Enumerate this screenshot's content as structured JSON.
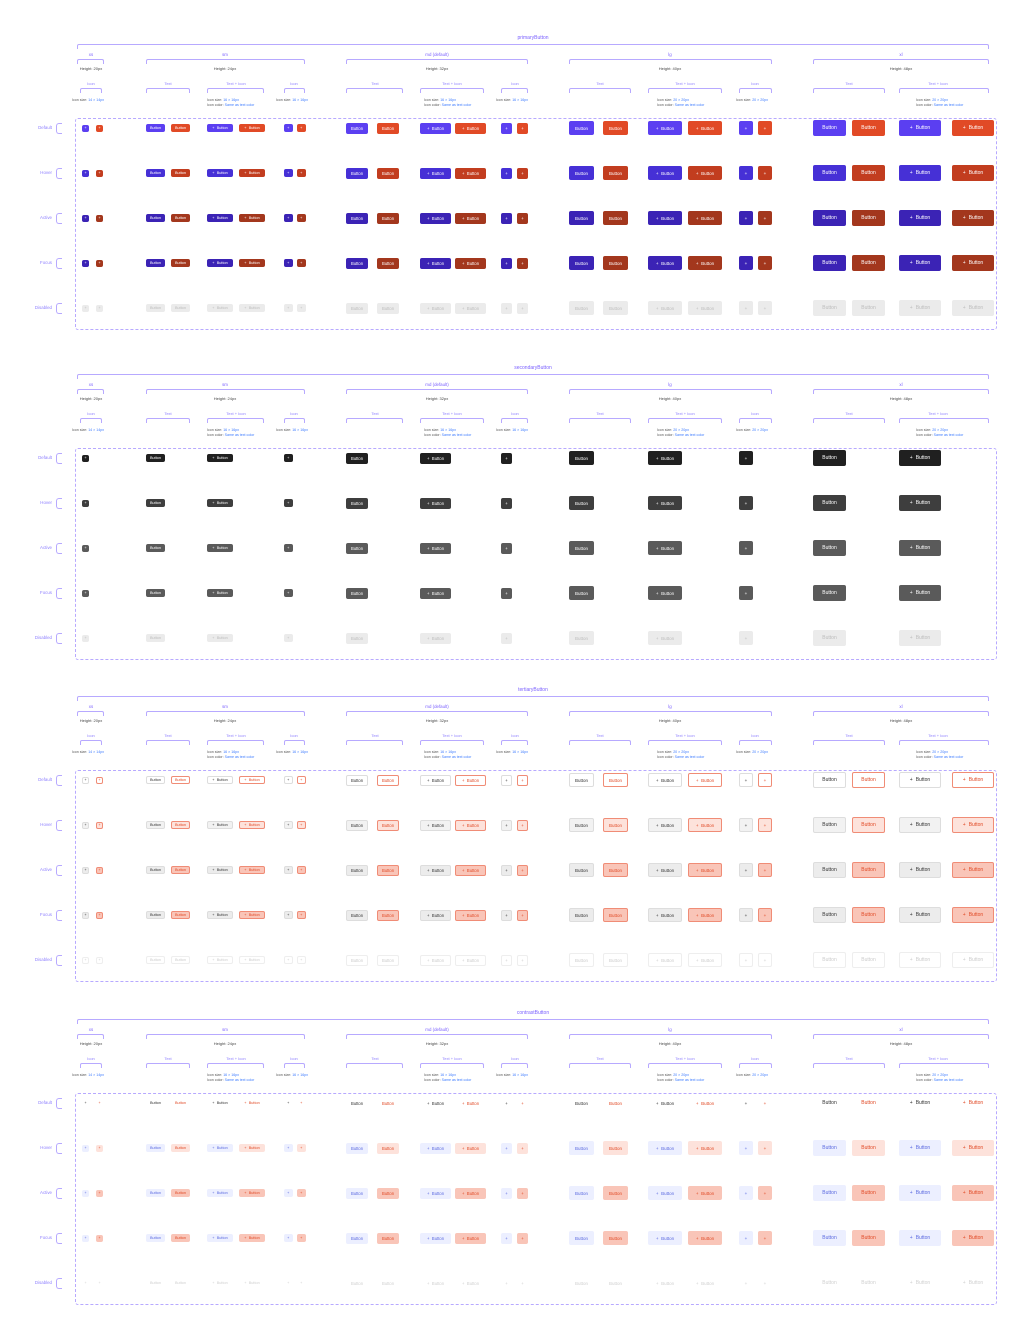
{
  "labels": {
    "text": "Text",
    "text_icon": "Text + Icon",
    "icon": "Icon",
    "button": "Button",
    "plus_glyph": "+",
    "icon_size_prefix": "Icon size:",
    "icon_color_prefix": "Icon color:",
    "same_as_text": "Same as text color",
    "icon_14": "14 × 14px",
    "icon_16": "16 × 16px",
    "icon_20": "20 × 20px"
  },
  "sizes": [
    {
      "key": "xs",
      "name": "xs",
      "height_label": "Height: 20px"
    },
    {
      "key": "sm",
      "name": "sm",
      "height_label": "Height: 24px"
    },
    {
      "key": "md",
      "name": "md (default)",
      "height_label": "Height: 32px"
    },
    {
      "key": "lg",
      "name": "lg",
      "height_label": "Height: 40px"
    },
    {
      "key": "xl",
      "name": "xl",
      "height_label": "Height: 48px"
    }
  ],
  "states": [
    "Default",
    "Hover",
    "Active",
    "Focus",
    "Disabled"
  ],
  "sections": [
    {
      "key": "primary",
      "title": "primaryButton",
      "variants": {
        "a": {
          "name": "violet",
          "states": [
            {
              "bg": "#5b3ff1",
              "fg": "#ffffff",
              "border": "#5b3ff1"
            },
            {
              "bg": "#4630d6",
              "fg": "#ffffff",
              "border": "#4630d6"
            },
            {
              "bg": "#3b23b5",
              "fg": "#ffffff",
              "border": "#3b23b5"
            },
            {
              "bg": "#3b23b5",
              "fg": "#ffffff",
              "border": "#3b23b5"
            },
            {
              "bg": "#ebebeb",
              "fg": "#bdbdbd",
              "border": "#ebebeb"
            }
          ]
        },
        "b": {
          "name": "red",
          "states": [
            {
              "bg": "#e14a26",
              "fg": "#ffffff",
              "border": "#e14a26"
            },
            {
              "bg": "#c23d1f",
              "fg": "#ffffff",
              "border": "#c23d1f"
            },
            {
              "bg": "#a3371d",
              "fg": "#ffffff",
              "border": "#a3371d"
            },
            {
              "bg": "#a3371d",
              "fg": "#ffffff",
              "border": "#a3371d"
            },
            {
              "bg": "#ebebeb",
              "fg": "#bdbdbd",
              "border": "#ebebeb"
            }
          ]
        }
      }
    },
    {
      "key": "secondary",
      "title": "secondaryButton",
      "variants": {
        "a": {
          "name": "dark",
          "states": [
            {
              "bg": "#202020",
              "fg": "#ffffff",
              "border": "#202020"
            },
            {
              "bg": "#3e3e3e",
              "fg": "#ffffff",
              "border": "#3e3e3e"
            },
            {
              "bg": "#5a5a5a",
              "fg": "#ffffff",
              "border": "#5a5a5a"
            },
            {
              "bg": "#5a5a5a",
              "fg": "#ffffff",
              "border": "#5a5a5a"
            },
            {
              "bg": "#ebebeb",
              "fg": "#bdbdbd",
              "border": "#ebebeb"
            }
          ]
        }
      }
    },
    {
      "key": "tertiary",
      "title": "tertiaryButton",
      "variants": {
        "a": {
          "name": "neutral",
          "states": [
            {
              "bg": "#ffffff",
              "fg": "#333333",
              "border": "#dddddd"
            },
            {
              "bg": "#f2f2f2",
              "fg": "#333333",
              "border": "#dddddd"
            },
            {
              "bg": "#ececec",
              "fg": "#333333",
              "border": "#dddddd"
            },
            {
              "bg": "#ececec",
              "fg": "#333333",
              "border": "#dddddd"
            },
            {
              "bg": "#ffffff",
              "fg": "#cccccc",
              "border": "#eeeeee"
            }
          ]
        },
        "b": {
          "name": "danger",
          "states": [
            {
              "bg": "#ffffff",
              "fg": "#e14a26",
              "border": "#f08c76"
            },
            {
              "bg": "#fde2db",
              "fg": "#e14a26",
              "border": "#f08c76"
            },
            {
              "bg": "#f9c5b8",
              "fg": "#e14a26",
              "border": "#f08c76"
            },
            {
              "bg": "#f9c5b8",
              "fg": "#e14a26",
              "border": "#f08c76"
            },
            {
              "bg": "#ffffff",
              "fg": "#cccccc",
              "border": "#eeeeee"
            }
          ]
        }
      }
    },
    {
      "key": "contrast",
      "title": "contrastButton",
      "variants": {
        "a": {
          "name": "neutral",
          "states": [
            {
              "bg": "#ffffff",
              "fg": "#333333",
              "border": "#ffffff"
            },
            {
              "bg": "#ecefff",
              "fg": "#5b6ae0",
              "border": "#ecefff"
            },
            {
              "bg": "#ecefff",
              "fg": "#5b6ae0",
              "border": "#ecefff"
            },
            {
              "bg": "#ecefff",
              "fg": "#5b6ae0",
              "border": "#ecefff"
            },
            {
              "bg": "#ffffff",
              "fg": "#d0d0d0",
              "border": "#ffffff"
            }
          ]
        },
        "b": {
          "name": "danger",
          "states": [
            {
              "bg": "#ffffff",
              "fg": "#e14a26",
              "border": "#ffffff"
            },
            {
              "bg": "#fde2db",
              "fg": "#e14a26",
              "border": "#fde2db"
            },
            {
              "bg": "#f9c5b8",
              "fg": "#e14a26",
              "border": "#f9c5b8"
            },
            {
              "bg": "#f9c5b8",
              "fg": "#e14a26",
              "border": "#f9c5b8"
            },
            {
              "bg": "#ffffff",
              "fg": "#d0d0d0",
              "border": "#ffffff"
            }
          ]
        }
      }
    }
  ]
}
